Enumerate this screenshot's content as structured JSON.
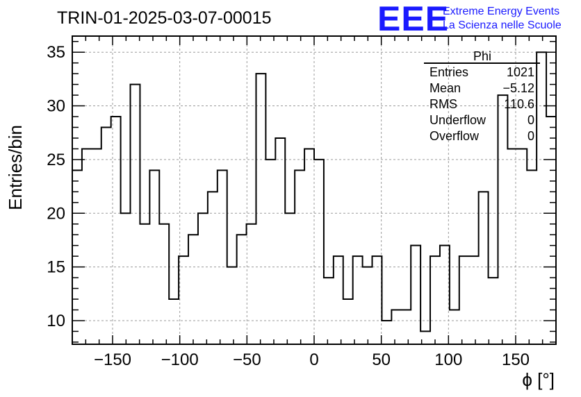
{
  "header": {
    "run_title": "TRIN-01-2025-03-07-00015",
    "logo": "EEE",
    "org_line1": "Extreme Energy Events",
    "org_line2": "La Scienza nelle Scuole"
  },
  "stats": {
    "name": "Phi",
    "rows": [
      {
        "label": "Entries",
        "value": "1021"
      },
      {
        "label": "Mean",
        "value": "−5.12"
      },
      {
        "label": "RMS",
        "value": "110.6"
      },
      {
        "label": "Underflow",
        "value": "0"
      },
      {
        "label": "Overflow",
        "value": "0"
      }
    ]
  },
  "chart_data": {
    "type": "histogram",
    "title": "TRIN-01-2025-03-07-00015",
    "xlabel": "ϕ [°]",
    "ylabel": "Entries/bin",
    "xlim": [
      -180,
      180
    ],
    "ylim": [
      7.8,
      36.5
    ],
    "bin_width": 7.2,
    "x_ticks": [
      -150,
      -100,
      -50,
      0,
      50,
      100,
      150
    ],
    "x_tick_labels": [
      "−150",
      "−100",
      "−50",
      "0",
      "50",
      "100",
      "150"
    ],
    "y_ticks": [
      10,
      15,
      20,
      25,
      30,
      35
    ],
    "y_tick_labels": [
      "10",
      "15",
      "20",
      "25",
      "30",
      "35"
    ],
    "grid": true,
    "values": [
      24,
      26,
      26,
      28,
      29,
      20,
      32,
      19,
      24,
      19,
      12,
      16,
      18,
      20,
      22,
      24,
      15,
      18,
      19,
      33,
      25,
      27,
      20,
      24,
      26,
      25,
      14,
      16,
      12,
      16,
      15,
      16,
      10,
      11,
      11,
      17,
      9,
      16,
      17,
      11,
      16,
      16,
      22,
      14,
      31,
      26,
      26,
      24,
      35,
      29
    ]
  }
}
